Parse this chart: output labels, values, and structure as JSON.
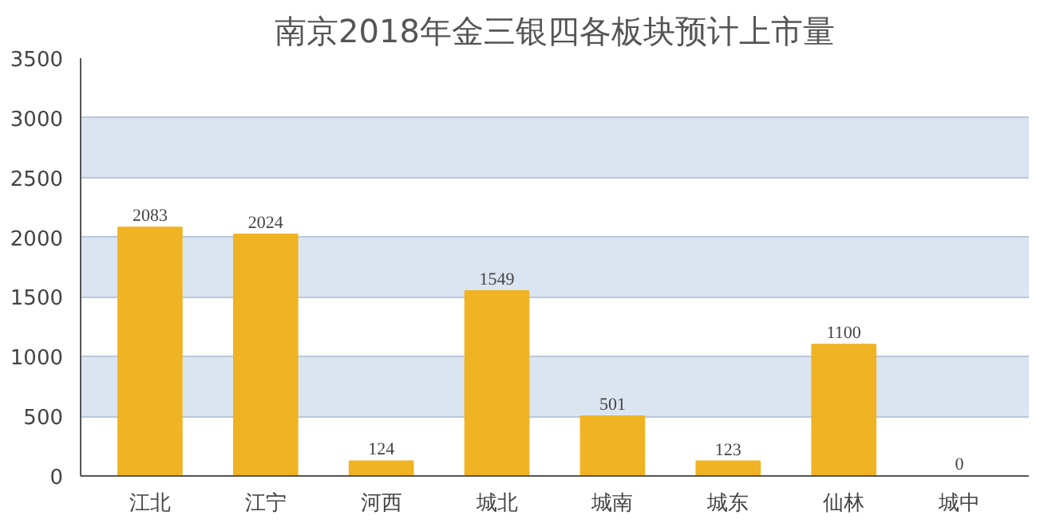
{
  "chart_data": {
    "type": "bar",
    "title": "南京2018年金三银四各板块预计上市量",
    "categories": [
      "江北",
      "江宁",
      "河西",
      "城北",
      "城南",
      "城东",
      "仙林",
      "城中"
    ],
    "values": [
      2083,
      2024,
      124,
      1549,
      501,
      123,
      1100,
      0
    ],
    "color": "#f0b323",
    "ylim": [
      0,
      3500
    ],
    "yticks": [
      0,
      500,
      1000,
      1500,
      2000,
      2500,
      3000,
      3500
    ],
    "grid": "y",
    "data_labels": true
  }
}
